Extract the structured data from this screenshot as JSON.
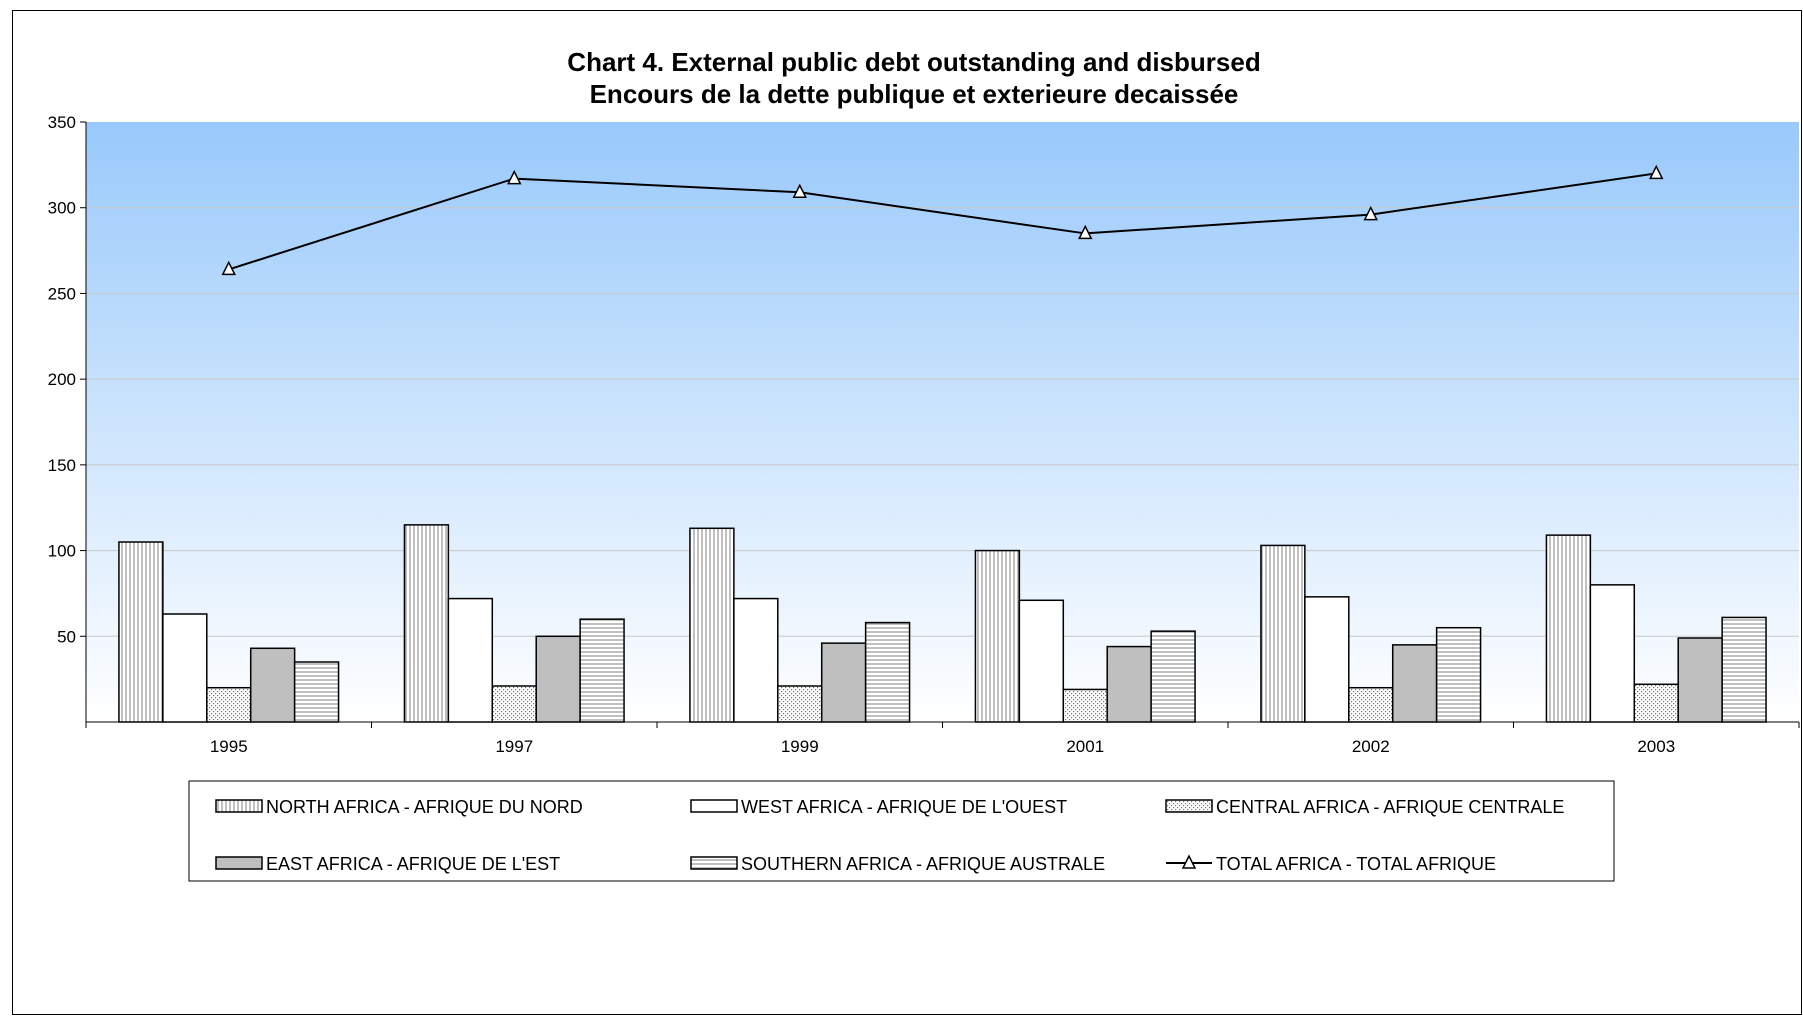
{
  "chart_data": {
    "type": "bar",
    "title": "Chart 4. External public debt outstanding and disbursed",
    "subtitle": "Encours de la dette publique et exterieure decaissée",
    "xlabel": "",
    "ylabel": "",
    "categories": [
      "1995",
      "1997",
      "1999",
      "2001",
      "2002",
      "2003"
    ],
    "ylim": [
      0,
      350
    ],
    "yticks": [
      50,
      100,
      150,
      200,
      250,
      300,
      350
    ],
    "grid": true,
    "legend_position": "bottom",
    "series": [
      {
        "name": "NORTH AFRICA - AFRIQUE DU NORD",
        "kind": "bar",
        "pattern": "vertical-lines",
        "color": "#ffffff",
        "values": [
          105,
          115,
          113,
          100,
          103,
          109
        ]
      },
      {
        "name": "WEST AFRICA - AFRIQUE DE L'OUEST",
        "kind": "bar",
        "pattern": "plain",
        "color": "#ffffff",
        "values": [
          63,
          72,
          72,
          71,
          73,
          80
        ]
      },
      {
        "name": "CENTRAL AFRICA - AFRIQUE CENTRALE",
        "kind": "bar",
        "pattern": "dots",
        "color": "#ffffff",
        "values": [
          20,
          21,
          21,
          19,
          20,
          22
        ]
      },
      {
        "name": "EAST AFRICA - AFRIQUE DE L'EST",
        "kind": "bar",
        "pattern": "solid",
        "color": "#bfbfbf",
        "values": [
          43,
          50,
          46,
          44,
          45,
          49
        ]
      },
      {
        "name": "SOUTHERN AFRICA - AFRIQUE AUSTRALE",
        "kind": "bar",
        "pattern": "horizontal-lines",
        "color": "#ffffff",
        "values": [
          35,
          60,
          58,
          53,
          55,
          61
        ]
      },
      {
        "name": "TOTAL AFRICA - TOTAL AFRIQUE",
        "kind": "line",
        "marker": "triangle",
        "color": "#000000",
        "values": [
          264,
          317,
          309,
          285,
          296,
          320
        ]
      }
    ],
    "plot_background": {
      "top": "#99c9fb",
      "bottom": "#ffffff"
    }
  }
}
